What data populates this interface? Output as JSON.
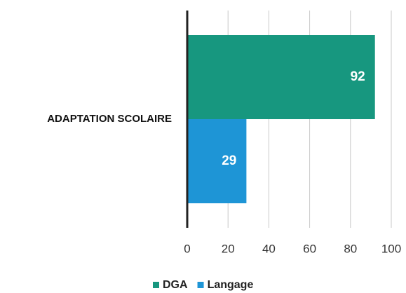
{
  "chart_data": {
    "type": "bar",
    "orientation": "horizontal",
    "categories": [
      "ADAPTATION SCOLAIRE"
    ],
    "series": [
      {
        "name": "DGA",
        "color": "#17977f",
        "values": [
          92
        ]
      },
      {
        "name": "Langage",
        "color": "#1e95d6",
        "values": [
          29
        ]
      }
    ],
    "xlim": [
      0,
      100
    ],
    "xticks": [
      0,
      20,
      40,
      60,
      80,
      100
    ],
    "grid": true,
    "legend": "bottom",
    "data_labels": true
  }
}
